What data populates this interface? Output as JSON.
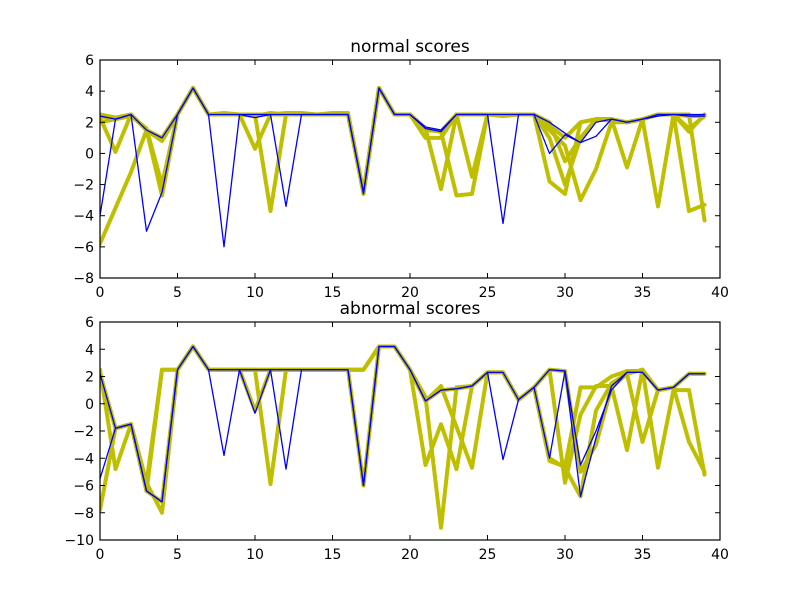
{
  "chart_data": [
    {
      "type": "line",
      "title": "normal scores",
      "xlabel": "",
      "ylabel": "",
      "xlim": [
        0,
        40
      ],
      "ylim": [
        -8,
        6
      ],
      "xticks": [
        0,
        5,
        10,
        15,
        20,
        25,
        30,
        35,
        40
      ],
      "yticks": [
        -8,
        -6,
        -4,
        -2,
        0,
        2,
        4,
        6
      ],
      "grid": false,
      "colors": {
        "yellow": "#bfbf00",
        "blue": "#0000ff"
      },
      "series": [
        {
          "color": "yellow",
          "values": [
            2.3,
            0.1,
            2.5,
            1.5,
            0.8,
            2.5,
            4.2,
            2.5,
            2.5,
            2.5,
            0.3,
            2.5,
            2.5,
            2.5,
            2.5,
            2.5,
            2.5,
            -2.5,
            4.2,
            2.5,
            2.5,
            1.0,
            1.0,
            2.5,
            2.5,
            2.5,
            2.5,
            2.5,
            2.5,
            -1.8,
            -2.6,
            2.0,
            2.2,
            2.2,
            -0.9,
            2.2,
            2.5,
            2.5,
            2.4,
            2.4
          ]
        },
        {
          "color": "yellow",
          "values": [
            2.5,
            2.3,
            2.5,
            1.5,
            -2.7,
            2.5,
            4.2,
            2.5,
            2.5,
            2.5,
            2.5,
            -3.7,
            2.5,
            2.5,
            2.5,
            2.5,
            2.5,
            -2.5,
            4.2,
            2.5,
            2.5,
            1.6,
            -2.3,
            2.5,
            -1.5,
            2.5,
            2.5,
            2.5,
            2.5,
            1.5,
            0.5,
            -3.0,
            -1.0,
            2.0,
            2.0,
            2.2,
            2.5,
            2.5,
            1.6,
            2.4
          ]
        },
        {
          "color": "yellow",
          "values": [
            -5.8,
            -3.5,
            -1.2,
            1.5,
            1.0,
            2.5,
            4.2,
            2.5,
            2.5,
            2.5,
            2.5,
            2.5,
            2.5,
            2.5,
            2.5,
            2.5,
            2.5,
            -2.5,
            4.2,
            2.5,
            2.5,
            1.6,
            1.4,
            -2.7,
            -2.6,
            2.5,
            2.5,
            2.5,
            2.5,
            1.0,
            -2.0,
            1.0,
            2.2,
            2.2,
            2.0,
            2.2,
            -3.4,
            2.5,
            -3.7,
            -3.3
          ]
        },
        {
          "color": "yellow",
          "values": [
            2.0,
            2.2,
            2.4,
            1.6,
            -2.0,
            2.5,
            4.2,
            2.5,
            2.6,
            2.5,
            2.5,
            2.5,
            2.6,
            2.6,
            2.5,
            2.6,
            2.6,
            -2.6,
            4.2,
            2.5,
            2.5,
            1.5,
            1.4,
            2.5,
            2.5,
            2.5,
            2.4,
            2.5,
            2.5,
            2.0,
            -0.5,
            1.0,
            2.2,
            2.1,
            2.0,
            2.2,
            2.5,
            2.5,
            1.4,
            2.5
          ]
        },
        {
          "color": "yellow",
          "values": [
            2.4,
            2.2,
            2.5,
            1.5,
            1.0,
            2.5,
            4.2,
            2.5,
            2.5,
            2.5,
            2.4,
            2.6,
            2.5,
            2.5,
            2.5,
            2.5,
            2.5,
            -2.5,
            4.2,
            2.5,
            2.5,
            1.6,
            1.4,
            2.5,
            2.5,
            2.5,
            2.5,
            2.5,
            2.5,
            1.8,
            1.0,
            2.0,
            2.2,
            2.2,
            2.0,
            2.2,
            2.5,
            2.5,
            2.5,
            -4.3
          ]
        },
        {
          "color": "blue",
          "values": [
            -4.0,
            2.2,
            2.5,
            -5.0,
            -2.5,
            2.5,
            4.2,
            2.5,
            -6.0,
            2.5,
            2.3,
            2.5,
            -3.4,
            2.5,
            2.5,
            2.5,
            2.5,
            -2.6,
            4.2,
            2.5,
            2.5,
            1.7,
            1.5,
            2.5,
            2.5,
            2.5,
            -4.5,
            2.5,
            2.5,
            2.0,
            1.3,
            0.7,
            1.1,
            2.2,
            2.0,
            2.2,
            2.4,
            2.5,
            2.4,
            2.4
          ]
        },
        {
          "color": "blue",
          "values": [
            2.4,
            2.2,
            2.5,
            1.5,
            1.0,
            2.5,
            4.2,
            2.5,
            2.5,
            2.5,
            2.5,
            2.5,
            2.5,
            2.5,
            2.5,
            2.5,
            2.5,
            -2.5,
            4.2,
            2.5,
            2.5,
            1.6,
            1.4,
            2.5,
            2.5,
            2.5,
            2.5,
            2.5,
            2.5,
            0.0,
            1.2,
            0.7,
            2.0,
            2.2,
            2.0,
            2.2,
            2.5,
            2.5,
            2.5,
            2.5
          ]
        }
      ]
    },
    {
      "type": "line",
      "title": "abnormal scores",
      "xlabel": "",
      "ylabel": "",
      "xlim": [
        0,
        40
      ],
      "ylim": [
        -10,
        6
      ],
      "xticks": [
        0,
        5,
        10,
        15,
        20,
        25,
        30,
        35,
        40
      ],
      "yticks": [
        -10,
        -8,
        -6,
        -4,
        -2,
        0,
        2,
        4,
        6
      ],
      "grid": false,
      "colors": {
        "yellow": "#bfbf00",
        "blue": "#0000ff"
      },
      "series": [
        {
          "color": "yellow",
          "values": [
            2.5,
            -4.8,
            -1.5,
            -5.8,
            2.5,
            2.5,
            4.2,
            2.5,
            2.5,
            2.5,
            2.5,
            2.5,
            2.5,
            2.5,
            2.5,
            2.5,
            2.5,
            2.5,
            4.2,
            4.2,
            2.5,
            0.5,
            -9.1,
            1.2,
            1.3,
            2.3,
            2.3,
            0.3,
            1.2,
            -4.2,
            -4.6,
            1.2,
            1.2,
            2.0,
            2.4,
            2.4,
            1.0,
            1.2,
            2.2,
            2.2
          ]
        },
        {
          "color": "yellow",
          "values": [
            -7.8,
            -1.8,
            -1.5,
            -5.8,
            -8.0,
            2.5,
            4.2,
            2.5,
            2.5,
            2.5,
            -0.5,
            2.5,
            2.5,
            2.5,
            2.5,
            2.5,
            2.5,
            -6.0,
            4.2,
            4.2,
            2.5,
            0.2,
            1.3,
            -1.7,
            -4.7,
            2.3,
            2.3,
            0.3,
            1.2,
            -4.0,
            -4.7,
            -6.8,
            -0.5,
            1.5,
            2.2,
            2.5,
            -4.7,
            1.0,
            1.0,
            -5.2
          ]
        },
        {
          "color": "yellow",
          "values": [
            2.2,
            -1.8,
            -1.5,
            -6.4,
            2.5,
            2.5,
            4.2,
            2.5,
            2.5,
            2.5,
            2.5,
            -5.9,
            2.5,
            2.5,
            2.5,
            2.5,
            2.5,
            2.5,
            4.2,
            4.2,
            2.5,
            -4.5,
            -1.5,
            -4.8,
            1.3,
            2.3,
            2.3,
            0.3,
            1.2,
            2.5,
            -5.8,
            -0.8,
            1.3,
            1.3,
            -3.4,
            2.5,
            1.0,
            1.2,
            -2.8,
            -5.0
          ]
        },
        {
          "color": "yellow",
          "values": [
            2.2,
            -1.8,
            -1.5,
            -6.4,
            -7.2,
            2.5,
            4.2,
            2.5,
            2.5,
            2.5,
            2.5,
            2.5,
            2.5,
            2.5,
            2.5,
            2.5,
            2.5,
            2.5,
            4.2,
            4.2,
            2.5,
            0.2,
            1.0,
            1.1,
            1.3,
            2.3,
            2.3,
            0.3,
            1.2,
            2.5,
            2.4,
            -5.0,
            -3.0,
            1.2,
            2.2,
            -2.8,
            1.0,
            1.2,
            2.2,
            2.2
          ]
        },
        {
          "color": "blue",
          "values": [
            -5.5,
            -1.8,
            -1.5,
            -6.4,
            -7.2,
            2.5,
            4.2,
            2.5,
            -3.8,
            2.5,
            -0.7,
            2.5,
            -4.8,
            2.5,
            2.5,
            2.5,
            2.5,
            -6.0,
            4.2,
            4.2,
            2.5,
            0.2,
            1.0,
            1.1,
            1.3,
            2.3,
            -4.1,
            0.3,
            1.2,
            -4.0,
            2.4,
            -4.5,
            -2.0,
            1.0,
            2.3,
            2.3,
            1.0,
            1.2,
            2.2,
            2.2
          ]
        },
        {
          "color": "blue",
          "values": [
            2.2,
            -1.8,
            -1.5,
            -6.4,
            -7.2,
            2.5,
            4.2,
            2.5,
            2.5,
            2.5,
            2.5,
            2.5,
            2.5,
            2.5,
            2.5,
            2.5,
            2.5,
            -6.0,
            4.2,
            4.2,
            2.5,
            0.2,
            1.0,
            1.1,
            1.3,
            2.3,
            2.3,
            0.3,
            1.2,
            2.5,
            2.4,
            -6.8,
            -2.5,
            1.3,
            2.3,
            2.3,
            1.0,
            1.2,
            2.2,
            2.2
          ]
        }
      ]
    }
  ]
}
